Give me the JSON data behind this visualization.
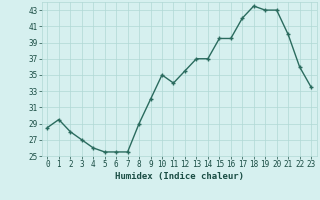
{
  "x": [
    0,
    1,
    2,
    3,
    4,
    5,
    6,
    7,
    8,
    9,
    10,
    11,
    12,
    13,
    14,
    15,
    16,
    17,
    18,
    19,
    20,
    21,
    22,
    23
  ],
  "y": [
    28.5,
    29.5,
    28,
    27,
    26,
    25.5,
    25.5,
    25.5,
    29,
    32,
    35,
    34,
    35.5,
    37,
    37,
    39.5,
    39.5,
    42,
    43.5,
    43,
    43,
    40,
    36,
    33.5
  ],
  "line_color": "#2a6b5e",
  "marker": "+",
  "bg_color": "#d6f0ef",
  "grid_color": "#b0d8d5",
  "xlabel": "Humidex (Indice chaleur)",
  "xlim": [
    -0.5,
    23.5
  ],
  "ylim": [
    25,
    44
  ],
  "yticks": [
    25,
    27,
    29,
    31,
    33,
    35,
    37,
    39,
    41,
    43
  ],
  "xticks": [
    0,
    1,
    2,
    3,
    4,
    5,
    6,
    7,
    8,
    9,
    10,
    11,
    12,
    13,
    14,
    15,
    16,
    17,
    18,
    19,
    20,
    21,
    22,
    23
  ],
  "font_color": "#1a4d44",
  "tick_fontsize": 5.5,
  "xlabel_fontsize": 6.5,
  "linewidth": 1.0,
  "markersize": 3.0,
  "markeredgewidth": 1.0
}
